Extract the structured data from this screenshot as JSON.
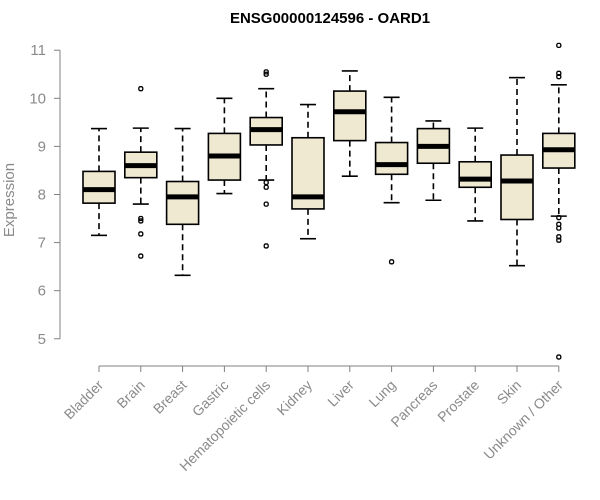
{
  "chart_data": {
    "type": "box",
    "title": "ENSG00000124596 - OARD1",
    "ylabel": "Expression",
    "xlabel": "",
    "ylim": [
      4.6,
      11.15
    ],
    "yticks": [
      5,
      6,
      7,
      8,
      9,
      10,
      11
    ],
    "grid": false,
    "box_fill": "#efe9d2",
    "categories": [
      "Bladder",
      "Brain",
      "Breast",
      "Gastric",
      "Hematopoietic cells",
      "Kidney",
      "Liver",
      "Lung",
      "Pancreas",
      "Prostate",
      "Skin",
      "Unknown / Other"
    ],
    "boxes": [
      {
        "min": 7.15,
        "q1": 7.82,
        "median": 8.1,
        "q3": 8.48,
        "max": 9.37,
        "outliers": []
      },
      {
        "min": 7.8,
        "q1": 8.35,
        "median": 8.6,
        "q3": 8.88,
        "max": 9.38,
        "outliers": [
          10.2,
          7.5,
          7.45,
          7.18,
          6.72
        ]
      },
      {
        "min": 6.32,
        "q1": 7.38,
        "median": 7.95,
        "q3": 8.27,
        "max": 9.37,
        "outliers": []
      },
      {
        "min": 8.02,
        "q1": 8.3,
        "median": 8.8,
        "q3": 9.27,
        "max": 10.0,
        "outliers": []
      },
      {
        "min": 8.3,
        "q1": 9.03,
        "median": 9.35,
        "q3": 9.6,
        "max": 10.2,
        "outliers": [
          10.55,
          10.5,
          8.25,
          8.15,
          7.8,
          6.93
        ]
      },
      {
        "min": 7.08,
        "q1": 7.7,
        "median": 7.95,
        "q3": 9.18,
        "max": 9.87,
        "outliers": []
      },
      {
        "min": 8.38,
        "q1": 9.12,
        "median": 9.72,
        "q3": 10.15,
        "max": 10.57,
        "outliers": []
      },
      {
        "min": 7.83,
        "q1": 8.42,
        "median": 8.62,
        "q3": 9.08,
        "max": 10.02,
        "outliers": [
          6.6
        ]
      },
      {
        "min": 7.88,
        "q1": 8.65,
        "median": 9.0,
        "q3": 9.37,
        "max": 9.53,
        "outliers": []
      },
      {
        "min": 7.45,
        "q1": 8.15,
        "median": 8.32,
        "q3": 8.68,
        "max": 9.38,
        "outliers": []
      },
      {
        "min": 6.52,
        "q1": 7.48,
        "median": 8.28,
        "q3": 8.82,
        "max": 10.43,
        "outliers": []
      },
      {
        "min": 7.55,
        "q1": 8.55,
        "median": 8.93,
        "q3": 9.27,
        "max": 10.28,
        "outliers": [
          11.1,
          10.52,
          10.45,
          7.52,
          7.38,
          7.3,
          7.12,
          7.05,
          4.62
        ]
      }
    ]
  }
}
